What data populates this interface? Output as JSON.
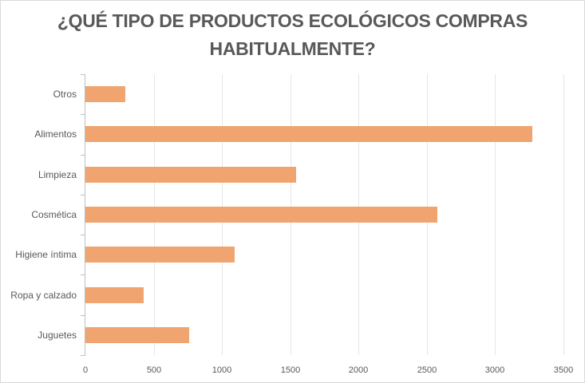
{
  "chart_data": {
    "type": "bar",
    "orientation": "horizontal",
    "title": "¿QUÉ TIPO DE PRODUCTOS ECOLÓGICOS COMPRAS HABITUALMENTE?",
    "title_lines": [
      "¿QUÉ TIPO DE PRODUCTOS ECOLÓGICOS COMPRAS",
      "HABITUALMENTE?"
    ],
    "categories": [
      "Otros",
      "Alimentos",
      "Limpieza",
      "Cosmética",
      "Higiene íntima",
      "Ropa y calzado",
      "Juguetes"
    ],
    "values": [
      290,
      3270,
      1545,
      2575,
      1095,
      425,
      757
    ],
    "xlabel": "",
    "ylabel": "",
    "xlim": [
      0,
      3500
    ],
    "xticks": [
      "0",
      "500",
      "1000",
      "1500",
      "2000",
      "2500",
      "3000",
      "3500"
    ],
    "grid": true,
    "legend": "none",
    "bar_color": "#f0a46f"
  }
}
